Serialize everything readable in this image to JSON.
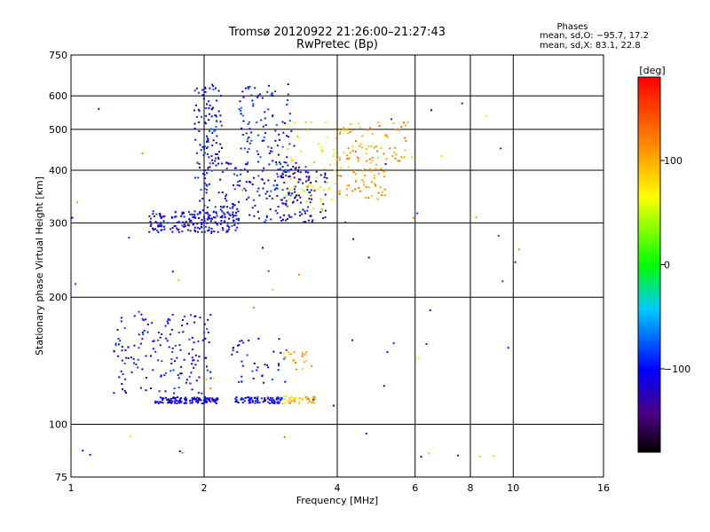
{
  "chart_data": {
    "type": "scatter",
    "title": "Tromsø 20120922 21:26:00–21:27:43",
    "subtitle": "RwPretec (Bp)",
    "xlabel": "Frequency [MHz]",
    "ylabel": "Stationary phase Virtual Height [km]",
    "x_scale": "log",
    "y_scale": "log",
    "xlim": [
      1,
      16
    ],
    "ylim": [
      75,
      750
    ],
    "x_ticks": [
      1,
      2,
      4,
      6,
      8,
      10,
      16
    ],
    "x_tick_labels": [
      "1",
      "2",
      "4",
      "6",
      "8",
      "10",
      "16"
    ],
    "x_grid": [
      2,
      4,
      6,
      8,
      10
    ],
    "y_ticks": [
      75,
      100,
      200,
      300,
      400,
      500,
      600,
      750
    ],
    "y_tick_labels": [
      "75",
      "100",
      "200",
      "300",
      "400",
      "500",
      "600",
      "750"
    ],
    "y_grid": [
      100,
      200,
      300,
      400,
      500,
      600
    ],
    "grid": true,
    "stats": {
      "heading": "Phases",
      "line_o": "mean, sd,O: −95.7, 17.2",
      "line_x": "mean, sd,X:  83.1, 22.8"
    },
    "colorbar": {
      "label": "[deg]",
      "range": [
        -180,
        180
      ],
      "ticks": [
        100,
        0,
        -100
      ],
      "tick_labels": [
        "100",
        "0",
        "−100"
      ],
      "placement": "right"
    },
    "clusters": [
      {
        "x": [
          1.55,
          2.15
        ],
        "y": [
          112,
          116
        ],
        "phase": -110,
        "n": 130
      },
      {
        "x": [
          2.35,
          3.0
        ],
        "y": [
          112,
          116
        ],
        "phase": -105,
        "n": 80
      },
      {
        "x": [
          3.0,
          3.6
        ],
        "y": [
          112,
          117
        ],
        "phase": 95,
        "n": 40
      },
      {
        "x": [
          1.25,
          2.1
        ],
        "y": [
          118,
          185
        ],
        "phase": -100,
        "n": 160
      },
      {
        "x": [
          2.3,
          3.1
        ],
        "y": [
          125,
          160
        ],
        "phase": -100,
        "n": 40
      },
      {
        "x": [
          3.0,
          3.5
        ],
        "y": [
          135,
          150
        ],
        "phase": 100,
        "n": 20
      },
      {
        "x": [
          1.5,
          2.4
        ],
        "y": [
          285,
          320
        ],
        "phase": -105,
        "n": 180
      },
      {
        "x": [
          1.9,
          3.5
        ],
        "y": [
          300,
          420
        ],
        "phase": -100,
        "n": 220
      },
      {
        "x": [
          2.9,
          3.8
        ],
        "y": [
          300,
          400
        ],
        "phase": -130,
        "n": 60
      },
      {
        "x": [
          1.9,
          2.2
        ],
        "y": [
          420,
          640
        ],
        "phase": -100,
        "n": 90
      },
      {
        "x": [
          2.4,
          3.2
        ],
        "y": [
          420,
          640
        ],
        "phase": -95,
        "n": 90
      },
      {
        "x": [
          3.0,
          4.0
        ],
        "y": [
          320,
          520
        ],
        "phase": 60,
        "n": 60
      },
      {
        "x": [
          4.0,
          5.2
        ],
        "y": [
          340,
          520
        ],
        "phase": 105,
        "n": 110
      },
      {
        "x": [
          5.3,
          5.9
        ],
        "y": [
          420,
          520
        ],
        "phase": 110,
        "n": 20
      },
      {
        "x": [
          1.0,
          10.5
        ],
        "y": [
          80,
          640
        ],
        "phase": -100,
        "n": 40
      },
      {
        "x": [
          1.0,
          10.5
        ],
        "y": [
          80,
          640
        ],
        "phase": 100,
        "n": 25
      }
    ]
  }
}
